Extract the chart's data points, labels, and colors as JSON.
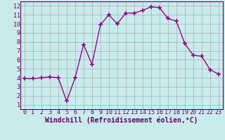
{
  "x": [
    0,
    1,
    2,
    3,
    4,
    5,
    6,
    7,
    8,
    9,
    10,
    11,
    12,
    13,
    14,
    15,
    16,
    17,
    18,
    19,
    20,
    21,
    22,
    23
  ],
  "y": [
    3.9,
    3.9,
    4.0,
    4.1,
    4.0,
    1.4,
    4.0,
    7.7,
    5.5,
    9.9,
    11.0,
    10.0,
    11.2,
    11.2,
    11.5,
    11.9,
    11.8,
    10.6,
    10.3,
    7.8,
    6.5,
    6.4,
    4.9,
    4.4
  ],
  "line_color": "#990099",
  "marker": "+",
  "marker_size": 4,
  "bg_color": "#c8ecec",
  "grid_color": "#aaaaaa",
  "xlabel": "Windchill (Refroidissement éolien,°C)",
  "xlim": [
    -0.5,
    23.5
  ],
  "ylim": [
    0.5,
    12.5
  ],
  "xticks": [
    0,
    1,
    2,
    3,
    4,
    5,
    6,
    7,
    8,
    9,
    10,
    11,
    12,
    13,
    14,
    15,
    16,
    17,
    18,
    19,
    20,
    21,
    22,
    23
  ],
  "yticks": [
    1,
    2,
    3,
    4,
    5,
    6,
    7,
    8,
    9,
    10,
    11,
    12
  ],
  "tick_fontsize": 6,
  "xlabel_fontsize": 7,
  "line_width": 1.0,
  "axis_color": "#660066",
  "spine_color": "#660066"
}
